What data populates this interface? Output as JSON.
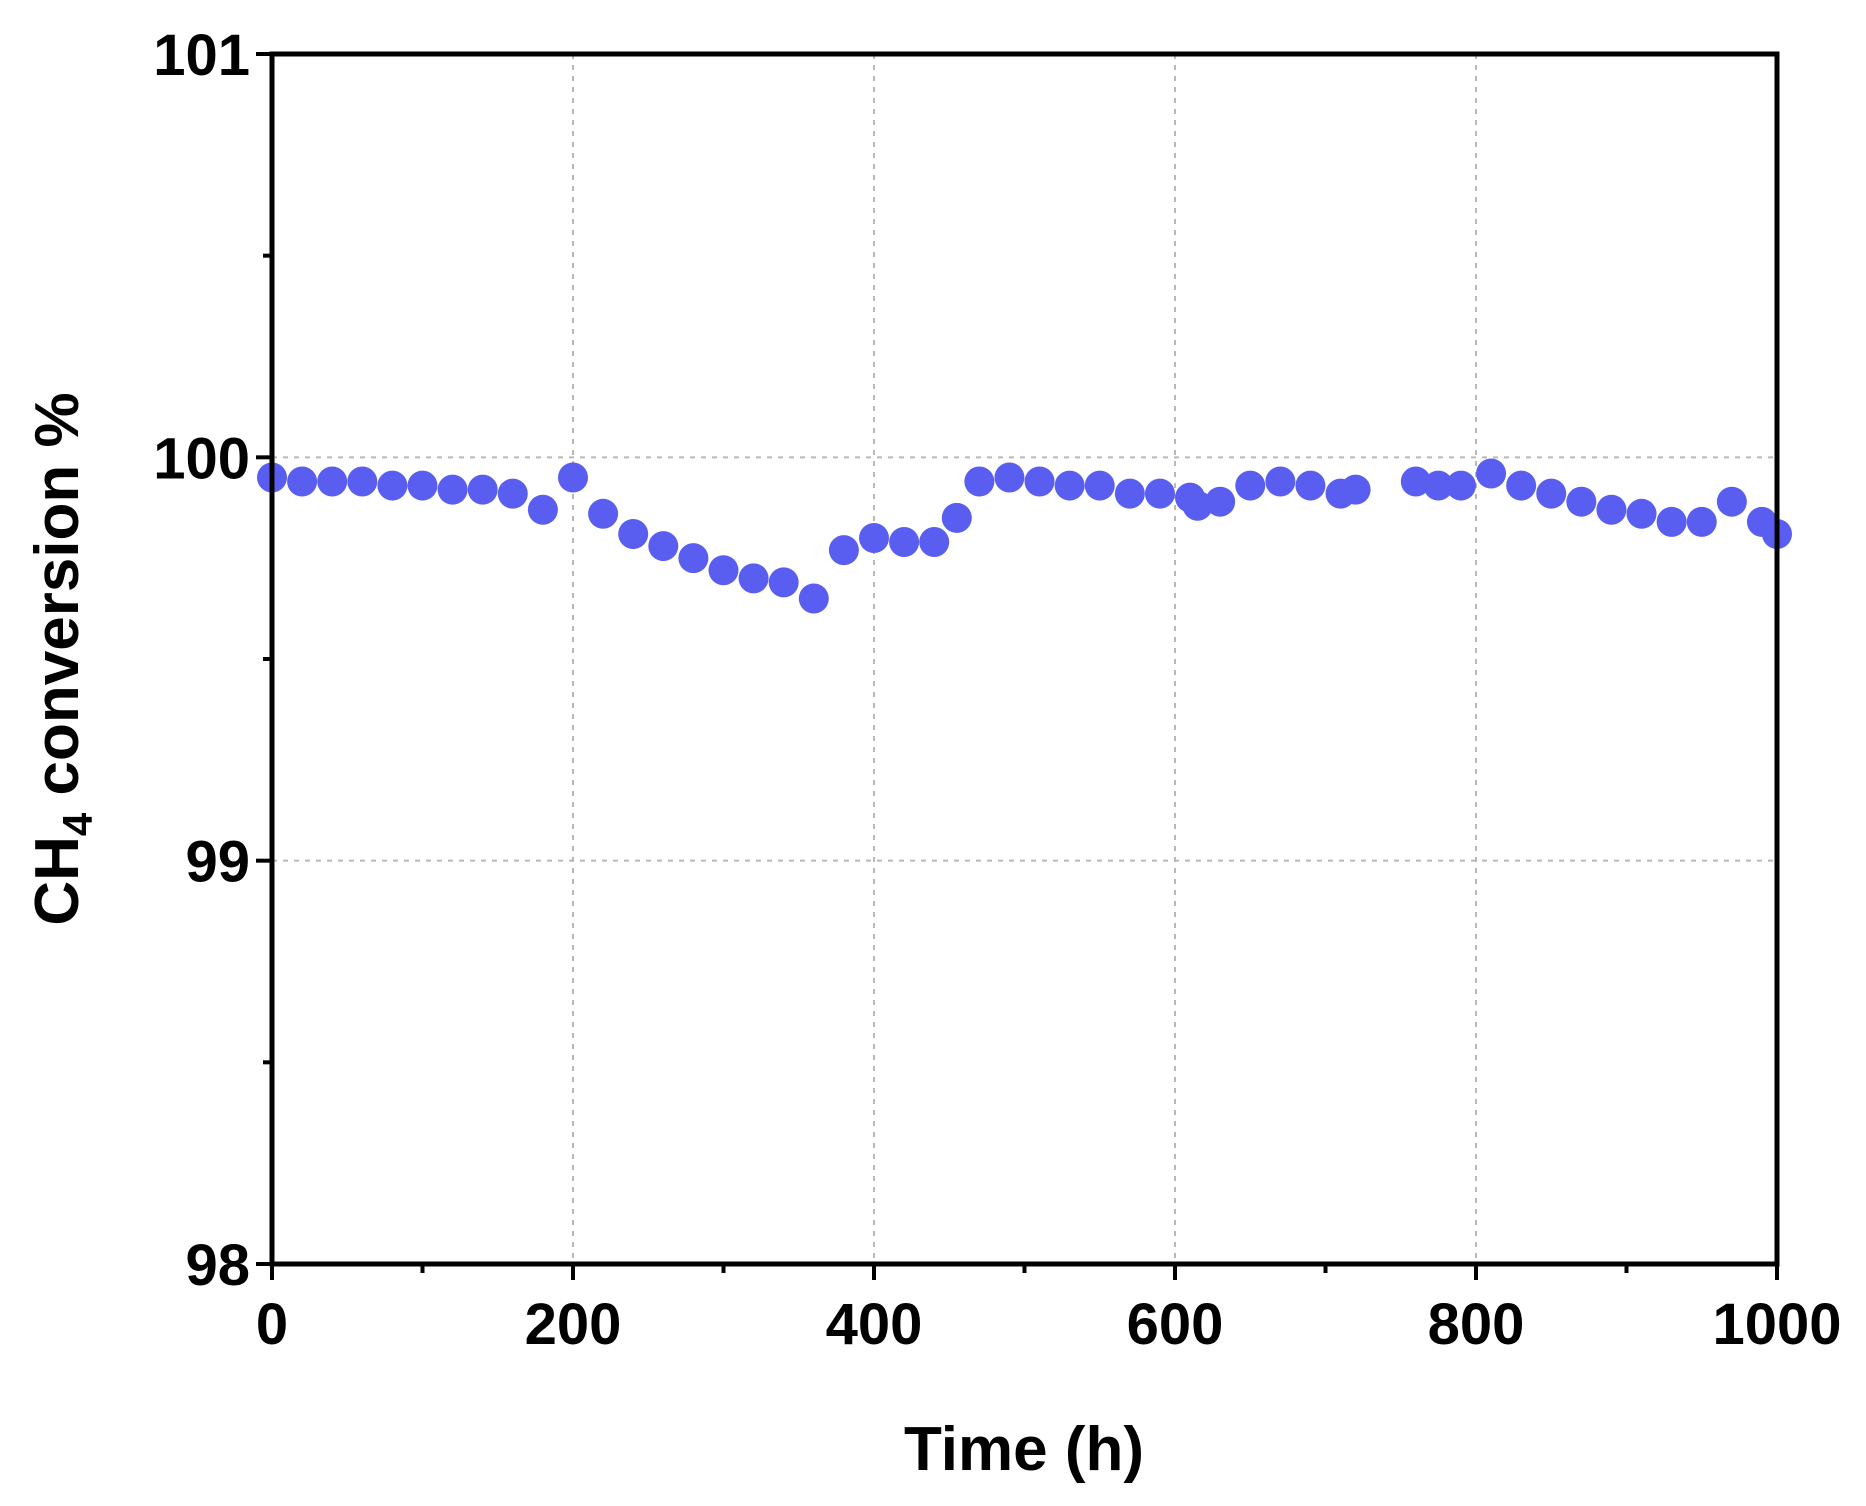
{
  "chart_data": {
    "type": "scatter",
    "title": "",
    "xlabel": "Time (h)",
    "ylabel": {
      "prefix": "CH",
      "subscript": "4",
      "suffix": " conversion %"
    },
    "xlim": [
      0,
      1000
    ],
    "ylim": [
      98,
      101
    ],
    "xticks": [
      0,
      200,
      400,
      600,
      800,
      1000
    ],
    "yticks": [
      98,
      99,
      100,
      101
    ],
    "xtick_labels": [
      "0",
      "200",
      "400",
      "600",
      "800",
      "1000"
    ],
    "ytick_labels": [
      "98",
      "99",
      "100",
      "101"
    ],
    "grid": true,
    "marker_color": "#5a5ef0",
    "x": [
      0,
      20,
      40,
      60,
      80,
      100,
      120,
      140,
      160,
      180,
      200,
      220,
      240,
      260,
      280,
      300,
      320,
      340,
      360,
      380,
      400,
      420,
      440,
      455,
      470,
      490,
      510,
      530,
      550,
      570,
      590,
      610,
      615,
      630,
      650,
      670,
      690,
      710,
      720,
      760,
      775,
      790,
      810,
      830,
      850,
      870,
      890,
      910,
      930,
      950,
      970,
      990,
      1000
    ],
    "y": [
      99.95,
      99.94,
      99.94,
      99.94,
      99.93,
      99.93,
      99.92,
      99.92,
      99.91,
      99.87,
      99.95,
      99.86,
      99.81,
      99.78,
      99.75,
      99.72,
      99.7,
      99.69,
      99.65,
      99.77,
      99.8,
      99.79,
      99.79,
      99.85,
      99.94,
      99.95,
      99.94,
      99.93,
      99.93,
      99.91,
      99.91,
      99.9,
      99.88,
      99.89,
      99.93,
      99.94,
      99.93,
      99.91,
      99.92,
      99.94,
      99.93,
      99.93,
      99.96,
      99.93,
      99.91,
      99.89,
      99.87,
      99.86,
      99.84,
      99.84,
      99.89,
      99.84,
      99.81
    ]
  }
}
